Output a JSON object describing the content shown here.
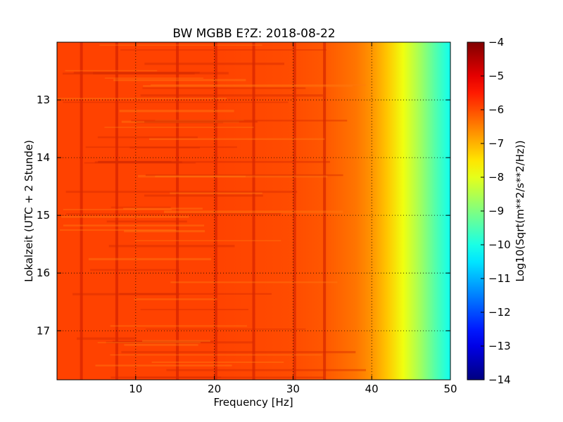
{
  "chart_data": {
    "type": "heatmap",
    "title": "BW MGBB E?Z: 2018-08-22",
    "xlabel": "Frequency [Hz]",
    "ylabel": "Lokalzeit (UTC + 2 Stunde)",
    "xlim": [
      0,
      50
    ],
    "ylim": [
      12.0,
      17.85
    ],
    "y_inverted": true,
    "x_ticks": [
      10,
      20,
      30,
      40,
      50
    ],
    "x_tick_labels": [
      "10",
      "20",
      "30",
      "40",
      "50"
    ],
    "y_ticks": [
      13,
      14,
      15,
      16,
      17
    ],
    "y_tick_labels": [
      "13",
      "14",
      "15",
      "16",
      "17"
    ],
    "grid": true,
    "colorbar": {
      "label": "Log10(Sqrt(m**2/s**2/Hz))",
      "range": [
        -14,
        -4
      ],
      "ticks": [
        -4,
        -5,
        -6,
        -7,
        -8,
        -9,
        -10,
        -11,
        -12,
        -13,
        -14
      ],
      "tick_labels": [
        "−4",
        "−5",
        "−6",
        "−7",
        "−8",
        "−9",
        "−10",
        "−11",
        "−12",
        "−13",
        "−14"
      ],
      "colormap": "jet"
    },
    "spectrum_profile": {
      "frequency_hz": [
        0,
        10,
        20,
        30,
        34,
        38,
        40,
        42,
        44,
        46,
        48,
        50
      ],
      "level": [
        -5.9,
        -5.9,
        -5.9,
        -6.0,
        -6.1,
        -6.4,
        -6.7,
        -7.2,
        -7.9,
        -8.6,
        -9.4,
        -10.1
      ]
    },
    "persistent_lines_hz": [
      3.1,
      7.6,
      15.3,
      20.2,
      25.0,
      30.2,
      34.0
    ]
  }
}
